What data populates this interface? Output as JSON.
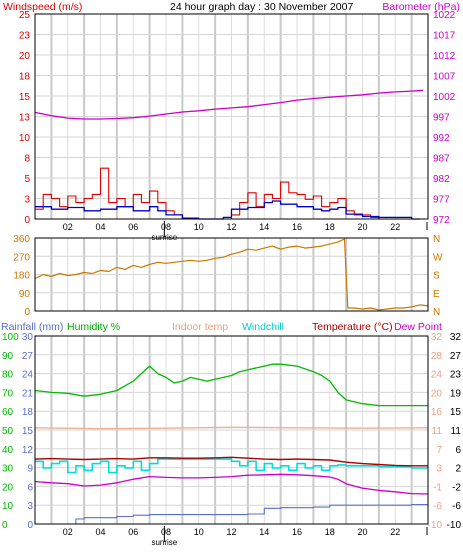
{
  "header": {
    "title": "24 hour graph day : 30 November 2007"
  },
  "colors": {
    "windspeed": "#dd0000",
    "windavg": "#0000cc",
    "barometer": "#cc00cc",
    "winddir": "#cc7700",
    "rainfall": "#5a6fd0",
    "humidity": "#00bb00",
    "indoor": "#f0b090",
    "windchill": "#00dddd",
    "temperature": "#aa0000",
    "dewpoint": "#cc00cc",
    "grid": "#c8c8c8",
    "frame": "#000000"
  },
  "xaxis": {
    "ticks": [
      "02",
      "04",
      "06",
      "08",
      "10",
      "12",
      "14",
      "16",
      "18",
      "20",
      "22"
    ],
    "sunrise_label": "sunrise",
    "sunrise_hour": 7.9
  },
  "chart_data": [
    {
      "type": "line",
      "id": "wind-baro",
      "left_label": "Windspeed (m/s)",
      "right_label": "Barometer (hPa)",
      "left_ticks": [
        "25",
        "23",
        "20",
        "18",
        "15",
        "13",
        "10",
        "8",
        "5",
        "3",
        "0"
      ],
      "right_ticks": [
        "1022",
        "1017",
        "1012",
        "1007",
        "1002",
        "997",
        "992",
        "987",
        "982",
        "977",
        "972"
      ],
      "ylim_left": [
        0,
        25
      ],
      "ylim_right": [
        972,
        1022
      ],
      "series": [
        {
          "name": "Windspeed (m/s)",
          "axis": "left",
          "x": [
            0,
            0.5,
            1,
            1.5,
            2,
            2.5,
            3,
            3.5,
            4,
            4.5,
            5,
            5.5,
            6,
            6.5,
            7,
            7.5,
            8,
            8.5,
            9,
            9.5,
            10,
            10.5,
            11,
            11.5,
            12,
            12.5,
            13,
            13.5,
            14,
            14.5,
            15,
            15.5,
            16,
            16.5,
            17,
            17.5,
            18,
            18.5,
            19,
            19.5,
            20,
            20.5,
            21,
            21.5,
            22,
            22.5,
            23,
            23.5
          ],
          "values": [
            1.2,
            3,
            2.5,
            1.5,
            2.8,
            2,
            2.5,
            3,
            6.2,
            2,
            2.5,
            1.5,
            3,
            2,
            3.4,
            2,
            1,
            0.5,
            0,
            0,
            0,
            0,
            0,
            0,
            0.5,
            2,
            3.2,
            1.5,
            3,
            2.5,
            4.5,
            3.2,
            3,
            2.4,
            2.8,
            1.5,
            2,
            2.5,
            1,
            0.5,
            0.5,
            0.2,
            0,
            0,
            0,
            0,
            0,
            0
          ]
        },
        {
          "name": "Wind average",
          "axis": "left",
          "x": [
            0,
            1,
            2,
            3,
            4,
            5,
            6,
            7,
            7.5,
            8,
            9,
            10,
            11,
            11.5,
            12,
            13,
            14,
            14.5,
            15,
            16,
            17,
            17.5,
            18,
            18.5,
            19,
            20,
            21,
            22,
            23,
            23.5
          ],
          "values": [
            1.5,
            1.2,
            1.4,
            1,
            1.2,
            1.5,
            1,
            1.5,
            1,
            0.5,
            0.1,
            0,
            0,
            0.2,
            1.2,
            1.4,
            2,
            2.2,
            1.8,
            1.5,
            1.2,
            1,
            1.2,
            1.4,
            0.6,
            0.3,
            0.2,
            0.2,
            0,
            0
          ]
        },
        {
          "name": "Barometer (hPa)",
          "axis": "right",
          "x": [
            0,
            1,
            2,
            3,
            4,
            5,
            6,
            7,
            8,
            9,
            10,
            11,
            12,
            13,
            14,
            15,
            16,
            17,
            18,
            19,
            20,
            21,
            22,
            23,
            23.7
          ],
          "values": [
            998,
            997.2,
            996.6,
            996.4,
            996.4,
            996.5,
            996.7,
            997.1,
            997.6,
            998.1,
            998.4,
            998.8,
            999.1,
            999.4,
            999.9,
            1000.4,
            1001,
            1001.4,
            1001.7,
            1002,
            1002.3,
            1002.7,
            1003,
            1003.2,
            1003.4
          ]
        }
      ]
    },
    {
      "type": "line",
      "id": "winddir",
      "left_ticks": [
        "360",
        "270",
        "180",
        "90",
        "0"
      ],
      "right_ticks": [
        "N",
        "W",
        "S",
        "E",
        "N"
      ],
      "ylim_left": [
        0,
        360
      ],
      "series": [
        {
          "name": "Wind direction",
          "axis": "left",
          "x": [
            0,
            0.5,
            1,
            1.5,
            2,
            2.5,
            3,
            3.5,
            4,
            4.5,
            5,
            5.5,
            6,
            6.5,
            7,
            7.5,
            8,
            8.5,
            9,
            9.5,
            10,
            10.5,
            11,
            11.5,
            12,
            12.5,
            13,
            13.5,
            14,
            14.5,
            15,
            15.5,
            16,
            16.5,
            17,
            17.5,
            18,
            18.5,
            18.9,
            19.1,
            19.5,
            20,
            20.5,
            21,
            21.5,
            22,
            22.5,
            23,
            23.5,
            24
          ],
          "values": [
            160,
            180,
            170,
            185,
            175,
            180,
            190,
            185,
            200,
            195,
            215,
            205,
            225,
            215,
            230,
            240,
            235,
            240,
            245,
            250,
            245,
            250,
            260,
            265,
            280,
            290,
            305,
            300,
            310,
            320,
            305,
            315,
            320,
            310,
            315,
            320,
            330,
            340,
            355,
            15,
            15,
            10,
            15,
            5,
            10,
            15,
            15,
            20,
            30,
            25
          ]
        }
      ]
    },
    {
      "type": "line",
      "id": "temp-hum",
      "labels": {
        "rainfall": "Rainfall (mm)",
        "humidity": "Humidity %",
        "indoor": "Indoor temp",
        "windchill": "Windchill",
        "temperature": "Temperature (°C)",
        "dewpoint": "Dew Point"
      },
      "rain_ticks": [
        "30",
        "27",
        "24",
        "21",
        "18",
        "15",
        "12",
        "9",
        "6",
        "3",
        "0"
      ],
      "humidity_ticks": [
        "100",
        "90",
        "80",
        "70",
        "60",
        "50",
        "40",
        "30",
        "20",
        "10",
        "0"
      ],
      "indoor_ticks": [
        "32",
        "28",
        "24",
        "20",
        "16",
        "11",
        "7",
        "3",
        "-1",
        "-6",
        "-10"
      ],
      "temp_ticks": [
        "32",
        "27",
        "23",
        "19",
        "15",
        "11",
        "6",
        "2",
        "-2",
        "-6",
        "-10"
      ],
      "ylim_humidity": [
        0,
        100
      ],
      "ylim_temperature": [
        -10,
        32
      ],
      "series": [
        {
          "name": "Humidity %",
          "axis": "humidity",
          "x": [
            0,
            1,
            2,
            3,
            4,
            5,
            6,
            6.5,
            7,
            7.5,
            8,
            8.5,
            9,
            9.5,
            10,
            10.5,
            11,
            12,
            12.5,
            13,
            14,
            14.5,
            15,
            16,
            17,
            17.5,
            18,
            18.5,
            19,
            20,
            21,
            22,
            23,
            24
          ],
          "values": [
            71,
            70,
            69.5,
            68,
            69,
            71,
            76,
            80,
            84,
            80,
            78,
            75,
            76,
            78,
            77,
            76,
            77,
            79,
            81,
            82,
            84,
            85,
            85,
            84,
            81,
            79,
            76,
            70,
            66,
            64,
            63,
            63,
            63,
            63
          ]
        },
        {
          "name": "Indoor temp",
          "axis": "temperature",
          "x": [
            0,
            4,
            8,
            12,
            16,
            20,
            24
          ],
          "values": [
            11.5,
            11.3,
            11.4,
            11.6,
            11.5,
            11.4,
            11.5
          ]
        },
        {
          "name": "Windchill",
          "axis": "temperature",
          "x": [
            0,
            0.5,
            1,
            1.5,
            2,
            2.5,
            3,
            3.5,
            4,
            4.5,
            5,
            5.5,
            6,
            6.5,
            7,
            7.5,
            8,
            8.5,
            9,
            10,
            11,
            12,
            12.5,
            13,
            13.5,
            14,
            14.5,
            15,
            15.5,
            16,
            16.5,
            17,
            17.5,
            18,
            18.5,
            19,
            20,
            21,
            22,
            23,
            24
          ],
          "values": [
            4,
            2.5,
            3.5,
            4,
            1.5,
            3,
            2,
            3.5,
            4,
            1.5,
            3,
            2.5,
            4,
            2,
            3.5,
            4.5,
            4.5,
            4.5,
            4.5,
            4.5,
            4.5,
            4,
            3,
            4,
            2,
            3.5,
            2.5,
            3,
            2,
            3.5,
            2.5,
            3,
            2,
            3,
            3.2,
            3,
            3,
            2.8,
            2.8,
            2.5,
            2.5
          ]
        },
        {
          "name": "Temperature (°C)",
          "axis": "temperature",
          "x": [
            0,
            1,
            2,
            3,
            4,
            5,
            6,
            7,
            8,
            9,
            10,
            11,
            12,
            13,
            14,
            15,
            16,
            17,
            18,
            19,
            20,
            21,
            22,
            23,
            24
          ],
          "values": [
            4.5,
            4.6,
            4.5,
            4.4,
            4.5,
            4.6,
            4.5,
            4.8,
            4.8,
            4.7,
            4.7,
            4.8,
            4.9,
            4.7,
            4.5,
            4.4,
            4.5,
            4.4,
            4.3,
            3.8,
            3.5,
            3.3,
            3.1,
            3,
            3
          ]
        },
        {
          "name": "Dew Point",
          "axis": "temperature",
          "x": [
            0,
            1,
            2,
            3,
            4,
            5,
            6,
            7,
            8,
            9,
            10,
            11,
            12,
            13,
            14,
            15,
            16,
            17,
            18,
            18.5,
            19,
            20,
            21,
            22,
            23,
            24
          ],
          "values": [
            -0.5,
            -0.8,
            -1,
            -1.5,
            -1.3,
            -0.8,
            0,
            0.6,
            0.4,
            0.3,
            0.3,
            0.4,
            0.6,
            0.9,
            1,
            1.1,
            1,
            0.8,
            0.5,
            0,
            -1,
            -2,
            -2.5,
            -2.8,
            -3.2,
            -3.3
          ]
        },
        {
          "name": "Rainfall (mm)",
          "axis": "rain",
          "x": [
            0,
            1,
            2,
            2.5,
            3,
            4,
            5,
            6,
            7,
            8,
            9,
            10,
            11,
            12,
            13,
            14,
            15,
            16,
            17,
            18,
            19,
            20,
            21,
            22,
            23,
            24
          ],
          "values": [
            0,
            0,
            0,
            0.8,
            1,
            1,
            1.2,
            1.4,
            1.5,
            1.5,
            1.5,
            1.5,
            1.5,
            1.5,
            1.6,
            2.5,
            2.6,
            2.6,
            2.7,
            3,
            3,
            3,
            3,
            3,
            3.1,
            3.1
          ]
        }
      ]
    }
  ]
}
